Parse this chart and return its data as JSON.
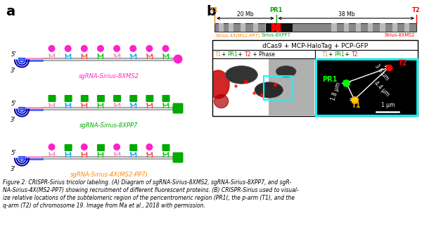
{
  "label_a": "a",
  "label_b": "b",
  "sgRNA1_label": "sgRNA-Sirius-8XMS2",
  "sgRNA2_label": "sgRNA-Sirius-8XPP7",
  "sgRNA3_label": "sgRNA-Sirius-4X(MS2-PP7)",
  "caption_line1": "Figure 2: CRISPR-Sirius tricolor labeling. (A) Diagram of sgRNA-Sirius-8XMS2, sgRNA-Sirius-8XPP7, and sgR-",
  "caption_line2": "NA-Sirius-4X(MS2-PP7) showing recruitment of different fluorescent proteins. (B) CRISPR-Sirius used to visual-",
  "caption_line3": "ize relative locations of the subtelomeric region of the pericentromeric region (PR1(, the p-arm (T1), and the",
  "caption_line4": "q-arm (T2) of chromosome 19. Image from Ma et al., 2018 with permission.",
  "color_magenta": "#FF22CC",
  "color_green": "#00AA00",
  "color_orange": "#FF8800",
  "color_red": "#FF0000",
  "color_cyan": "#00CCCC",
  "color_pink": "#FF99CC",
  "color_blue_dark": "#0000BB",
  "color_blue_mid": "#3355FF",
  "color_blue_light": "#6688FF",
  "connector_colors": [
    "#FF88BB",
    "#00AAFF",
    "#FF4444",
    "#00CC00"
  ],
  "chr_gray": "#888888",
  "chr_light": "#BBBBBB",
  "chr_black": "#111111"
}
